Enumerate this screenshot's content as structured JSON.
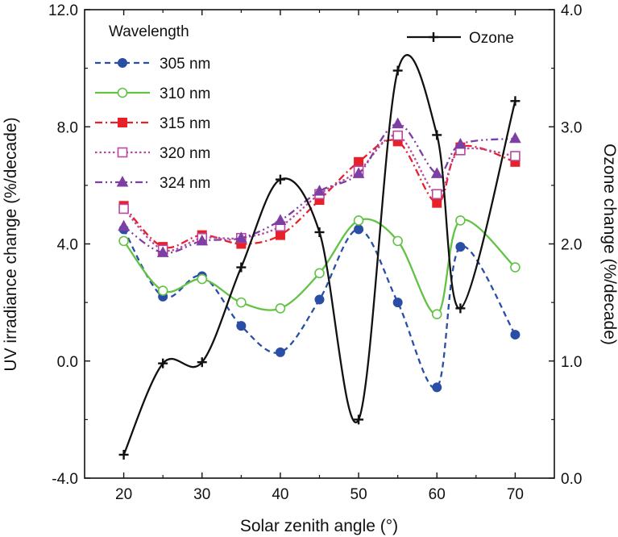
{
  "chart_data": {
    "type": "line",
    "xlabel": "Solar zenith angle (°)",
    "ylabel": "UV irradiance change (%/decade)",
    "y2label": "Ozone change (%/decade)",
    "xlim": [
      15,
      75
    ],
    "ylim": [
      -4,
      12
    ],
    "y2lim": [
      0,
      4
    ],
    "x_ticks": [
      "20",
      "30",
      "40",
      "50",
      "60",
      "70"
    ],
    "y_ticks": [
      "-4.0",
      "0.0",
      "4.0",
      "8.0",
      "12.0"
    ],
    "y2_ticks": [
      "0.0",
      "1.0",
      "2.0",
      "3.0",
      "4.0"
    ],
    "grid": false,
    "legend_title": "Wavelength",
    "legend_placement": "top-left",
    "legend2_placement": "top-right",
    "x": [
      20,
      25,
      30,
      35,
      40,
      45,
      50,
      55,
      60,
      63,
      70
    ],
    "series": [
      {
        "name": "305 nm",
        "axis": "left",
        "color": "#2a4ea6",
        "marker": "circle-filled",
        "line": "dash",
        "values": [
          4.5,
          2.2,
          2.9,
          1.2,
          0.3,
          2.1,
          4.5,
          2.0,
          -0.9,
          3.9,
          0.9
        ]
      },
      {
        "name": "310 nm",
        "axis": "left",
        "color": "#62c244",
        "marker": "circle-open",
        "line": "solid",
        "values": [
          4.1,
          2.4,
          2.8,
          2.0,
          1.8,
          3.0,
          4.8,
          4.1,
          1.6,
          4.8,
          3.2
        ]
      },
      {
        "name": "315 nm",
        "axis": "left",
        "color": "#e8202a",
        "marker": "square-filled",
        "line": "dashdot",
        "values": [
          5.3,
          3.9,
          4.3,
          4.0,
          4.3,
          5.5,
          6.8,
          7.5,
          5.4,
          7.3,
          6.8
        ]
      },
      {
        "name": "320 nm",
        "axis": "left",
        "color": "#b8479f",
        "marker": "square-open",
        "line": "dot",
        "values": [
          5.2,
          3.8,
          4.2,
          4.2,
          4.6,
          5.7,
          6.5,
          7.7,
          5.7,
          7.2,
          7.0
        ]
      },
      {
        "name": "324 nm",
        "axis": "left",
        "color": "#7e3fa5",
        "marker": "triangle-filled",
        "line": "dashdotdot",
        "values": [
          4.6,
          3.7,
          4.1,
          4.2,
          4.8,
          5.8,
          6.4,
          8.1,
          6.4,
          7.4,
          7.6
        ]
      },
      {
        "name": "Ozone",
        "axis": "right",
        "color": "#111111",
        "marker": "plus",
        "line": "solid",
        "values": [
          0.2,
          0.98,
          0.99,
          1.8,
          2.55,
          2.1,
          0.5,
          3.48,
          2.93,
          1.45,
          3.22
        ]
      }
    ]
  }
}
